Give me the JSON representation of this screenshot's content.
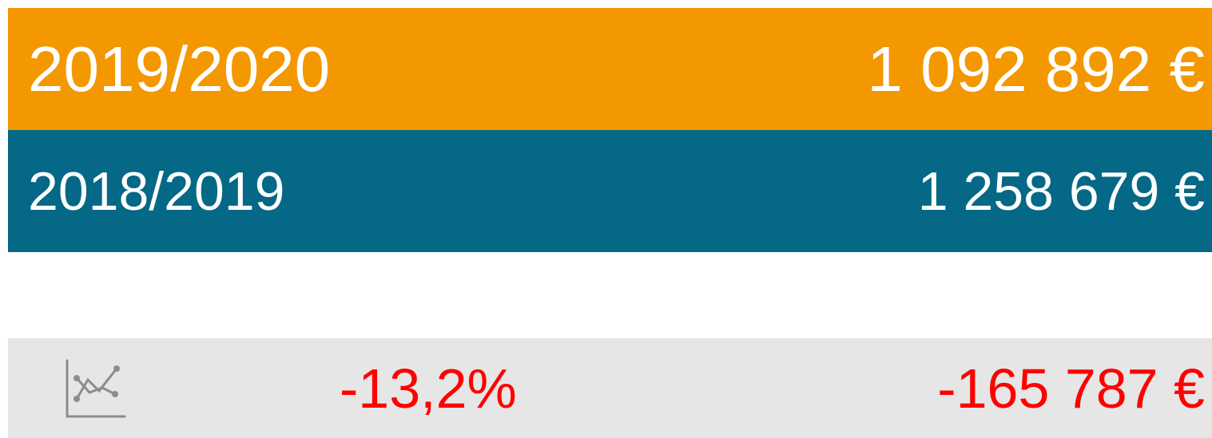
{
  "rows": [
    {
      "period": "2019/2020",
      "amount": "1 092 892 €"
    },
    {
      "period": "2018/2019",
      "amount": "1 258 679 €"
    }
  ],
  "comparison": {
    "percent": "-13,2%",
    "difference": "-165 787 €"
  }
}
